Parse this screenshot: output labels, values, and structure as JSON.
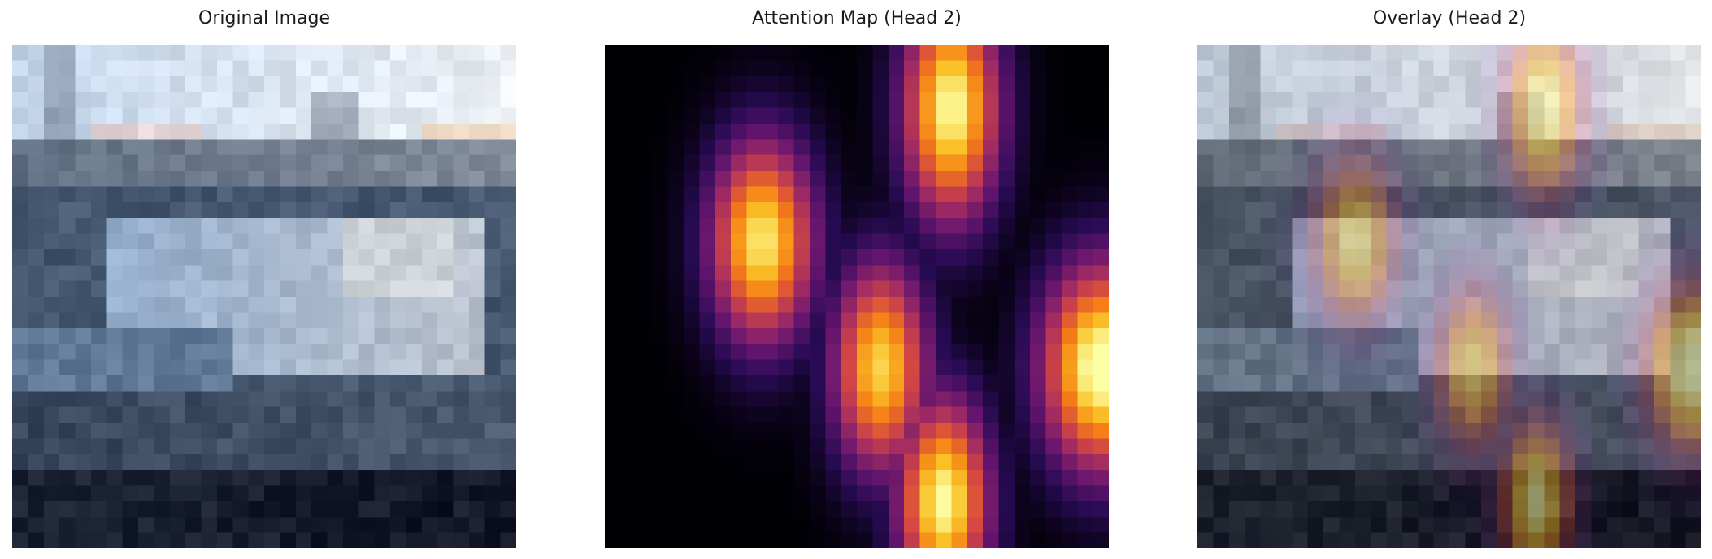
{
  "panels": [
    {
      "title": "Original Image"
    },
    {
      "title": "Attention Map (Head 2)"
    },
    {
      "title": "Overlay (Head 2)"
    }
  ],
  "image_description_colors": {
    "sky": "#d4dfea",
    "boat_hull": "#a9bfd8",
    "water_dark": "#2b3446",
    "colormap": "inferno"
  }
}
